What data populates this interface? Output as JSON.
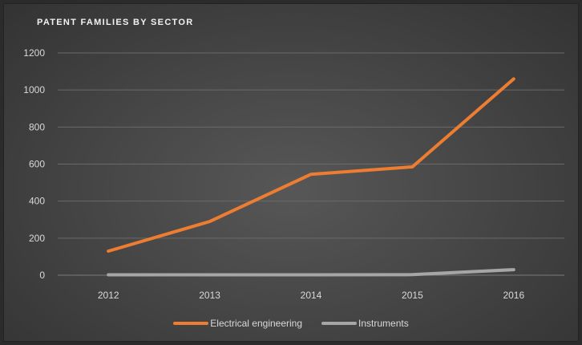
{
  "chart_data": {
    "type": "line",
    "title": "PATENT FAMILIES BY SECTOR",
    "xlabel": "",
    "ylabel": "",
    "categories": [
      "2012",
      "2013",
      "2014",
      "2015",
      "2016"
    ],
    "y_ticks": [
      "0",
      "200",
      "400",
      "600",
      "800",
      "1000",
      "1200"
    ],
    "ylim": [
      0,
      1200
    ],
    "grid": true,
    "legend_position": "bottom",
    "series": [
      {
        "name": "Electrical engineering",
        "color": "#ed7d31",
        "values": [
          130,
          290,
          545,
          585,
          1060
        ]
      },
      {
        "name": "Instruments",
        "color": "#a6a6a6",
        "values": [
          2,
          2,
          2,
          3,
          30
        ]
      }
    ]
  }
}
